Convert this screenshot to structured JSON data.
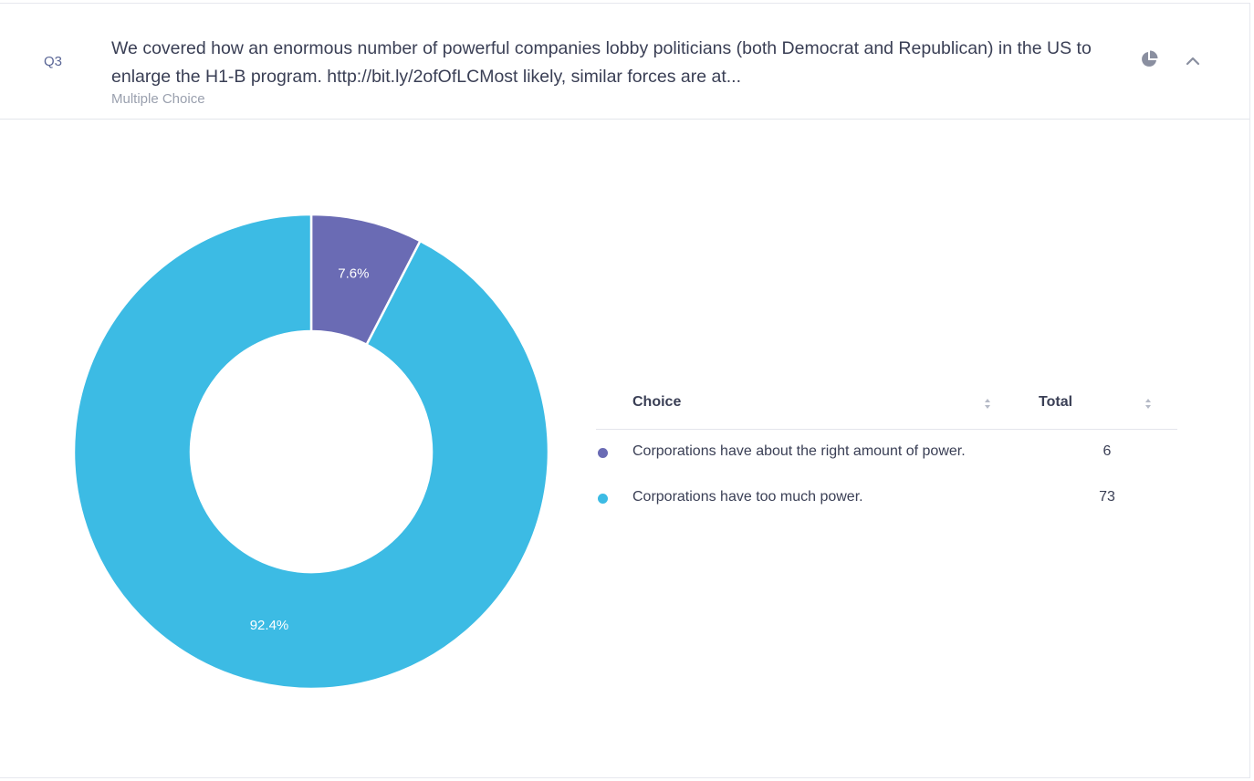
{
  "question": {
    "number": "Q3",
    "text": "We covered how an enormous number of powerful companies lobby politicians (both Democrat and Republican) in the US to enlarge the H1-B program. http://bit.ly/2ofOfLCMost likely, similar forces are at...",
    "type": "Multiple Choice"
  },
  "icons": {
    "chart_toggle": "pie-chart-icon",
    "collapse": "chevron-up-icon",
    "sort": "sort-icon"
  },
  "table": {
    "headers": {
      "choice": "Choice",
      "total": "Total"
    },
    "rows": [
      {
        "choice": "Corporations have about the right amount of power.",
        "total": "6",
        "color": "#6a6bb4"
      },
      {
        "choice": "Corporations have too much power.",
        "total": "73",
        "color": "#3cbbe4"
      }
    ]
  },
  "chart_data": {
    "type": "pie",
    "style": "donut",
    "categories": [
      "Corporations have about the right amount of power.",
      "Corporations have too much power."
    ],
    "values": [
      7.6,
      92.4
    ],
    "labels": [
      "7.6%",
      "92.4%"
    ],
    "colors": [
      "#6a6bb4",
      "#3cbbe4"
    ]
  }
}
